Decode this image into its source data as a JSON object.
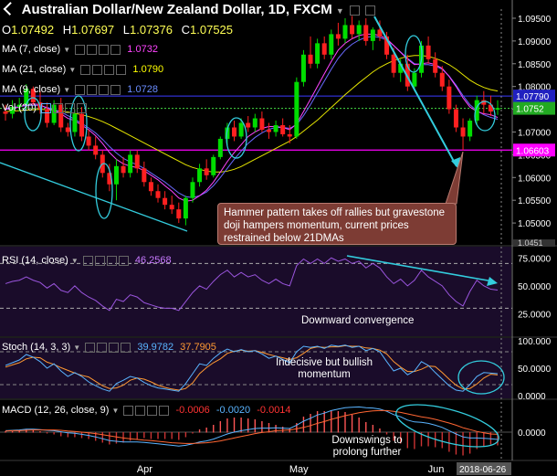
{
  "title": "Australian Dollar/New Zealand Dollar, 1D, FXCM",
  "ohlc": {
    "o_label": "O",
    "o": "1.07492",
    "h_label": "H",
    "h": "1.07697",
    "l_label": "L",
    "l": "1.07376",
    "c_label": "C",
    "c": "1.07525"
  },
  "indicators": [
    {
      "label": "MA (7, close)",
      "value": "1.0732",
      "color": "#ff44ff"
    },
    {
      "label": "MA (21, close)",
      "value": "1.0790",
      "color": "#ffff00"
    },
    {
      "label": "MA (9, close)",
      "value": "1.0728",
      "color": "#5f8cff"
    },
    {
      "label": "Vol (20)",
      "value": "",
      "color": "#ffffff"
    }
  ],
  "price_scale": [
    "1.09500",
    "1.09000",
    "1.08500",
    "1.08000",
    "1.07500",
    "1.07000",
    "1.06500",
    "1.06000",
    "1.05500",
    "1.05000"
  ],
  "price_tags": [
    {
      "value": "1.07790",
      "color": "#2020c0",
      "text": "#ffffff"
    },
    {
      "value": "1.0752",
      "color": "#22aa22",
      "text": "#ffffff"
    },
    {
      "value": "1.06603",
      "color": "#ff00ff",
      "text": "#ffffff"
    }
  ],
  "partial_tag": "1.0451",
  "callout_text": "Hammer pattern takes off rallies but gravestone doji hampers momentum, current prices restrained below 21DMAs",
  "rsi": {
    "label": "RSI (14, close)",
    "value": "46.2568",
    "scale": [
      "75.0000",
      "50.0000",
      "25.0000"
    ],
    "note": "Downward convergence"
  },
  "stoch": {
    "label": "Stoch (14, 3, 3)",
    "k": "39.9782",
    "d": "37.7905",
    "scale": [
      "100.000",
      "50.0000",
      "0.0000"
    ],
    "note": "Indecisive but bullish momentum"
  },
  "macd": {
    "label": "MACD (12, 26, close, 9)",
    "v1": "-0.0006",
    "v2": "-0.0020",
    "v3": "-0.0014",
    "scale": [
      "0.0000"
    ],
    "note": "Downswings to prolong further"
  },
  "x_labels": [
    "Apr",
    "May",
    "Jun"
  ],
  "date_tag": "2018-06-26",
  "colors": {
    "bull": "#00dd00",
    "bear": "#ff2020",
    "ma7": "#ff44ff",
    "ma21": "#e6e600",
    "ma9": "#6a6aff",
    "annot": "#33ccdd"
  },
  "chart_data": {
    "type": "candlestick",
    "title": "Australian Dollar/New Zealand Dollar, 1D, FXCM",
    "ylim": [
      1.045,
      1.097
    ],
    "candles": [
      [
        1.0745,
        1.076,
        1.0725,
        1.074
      ],
      [
        1.074,
        1.077,
        1.073,
        1.0755
      ],
      [
        1.0755,
        1.0775,
        1.0745,
        1.076
      ],
      [
        1.076,
        1.0805,
        1.075,
        1.0795
      ],
      [
        1.0795,
        1.08,
        1.076,
        1.0765
      ],
      [
        1.0765,
        1.079,
        1.074,
        1.075
      ],
      [
        1.075,
        1.0765,
        1.071,
        1.072
      ],
      [
        1.072,
        1.077,
        1.0715,
        1.076
      ],
      [
        1.076,
        1.0775,
        1.07,
        1.071
      ],
      [
        1.071,
        1.072,
        1.069,
        1.07
      ],
      [
        1.07,
        1.075,
        1.069,
        1.074
      ],
      [
        1.074,
        1.0755,
        1.068,
        1.069
      ],
      [
        1.069,
        1.0705,
        1.066,
        1.067
      ],
      [
        1.067,
        1.069,
        1.064,
        1.065
      ],
      [
        1.065,
        1.066,
        1.06,
        1.061
      ],
      [
        1.061,
        1.063,
        1.057,
        1.0585
      ],
      [
        1.0585,
        1.064,
        1.055,
        1.0625
      ],
      [
        1.0625,
        1.0645,
        1.06,
        1.061
      ],
      [
        1.061,
        1.066,
        1.06,
        1.065
      ],
      [
        1.065,
        1.066,
        1.061,
        1.062
      ],
      [
        1.062,
        1.0635,
        1.058,
        1.059
      ],
      [
        1.059,
        1.06,
        1.056,
        1.057
      ],
      [
        1.057,
        1.0585,
        1.0545,
        1.0555
      ],
      [
        1.0555,
        1.057,
        1.053,
        1.054
      ],
      [
        1.054,
        1.056,
        1.052,
        1.053
      ],
      [
        1.053,
        1.0545,
        1.05,
        1.051
      ],
      [
        1.051,
        1.056,
        1.0495,
        1.0555
      ],
      [
        1.0555,
        1.06,
        1.0545,
        1.059
      ],
      [
        1.059,
        1.063,
        1.058,
        1.062
      ],
      [
        1.062,
        1.064,
        1.0595,
        1.0605
      ],
      [
        1.0605,
        1.065,
        1.06,
        1.0645
      ],
      [
        1.0645,
        1.069,
        1.064,
        1.0685
      ],
      [
        1.0685,
        1.072,
        1.067,
        1.071
      ],
      [
        1.071,
        1.0725,
        1.068,
        1.069
      ],
      [
        1.069,
        1.073,
        1.0685,
        1.072
      ],
      [
        1.072,
        1.0735,
        1.07,
        1.071
      ],
      [
        1.071,
        1.074,
        1.07,
        1.073
      ],
      [
        1.073,
        1.0745,
        1.07,
        1.0705
      ],
      [
        1.0705,
        1.072,
        1.0685,
        1.07
      ],
      [
        1.07,
        1.0725,
        1.069,
        1.0715
      ],
      [
        1.0715,
        1.073,
        1.069,
        1.0695
      ],
      [
        1.0695,
        1.0715,
        1.0675,
        1.069
      ],
      [
        1.069,
        1.082,
        1.0685,
        1.081
      ],
      [
        1.081,
        1.088,
        1.08,
        1.087
      ],
      [
        1.087,
        1.091,
        1.084,
        1.085
      ],
      [
        1.085,
        1.0905,
        1.084,
        1.0895
      ],
      [
        1.0895,
        1.091,
        1.086,
        1.087
      ],
      [
        1.087,
        1.0925,
        1.086,
        1.0915
      ],
      [
        1.0915,
        1.094,
        1.089,
        1.0905
      ],
      [
        1.0905,
        1.095,
        1.0895,
        1.0935
      ],
      [
        1.0935,
        1.0955,
        1.0905,
        1.0915
      ],
      [
        1.0915,
        1.0945,
        1.09,
        1.0935
      ],
      [
        1.0935,
        1.095,
        1.089,
        1.09
      ],
      [
        1.09,
        1.093,
        1.088,
        1.0925
      ],
      [
        1.0925,
        1.0945,
        1.09,
        1.091
      ],
      [
        1.091,
        1.092,
        1.086,
        1.087
      ],
      [
        1.087,
        1.0885,
        1.082,
        1.083
      ],
      [
        1.083,
        1.086,
        1.081,
        1.085
      ],
      [
        1.085,
        1.087,
        1.079,
        1.08
      ],
      [
        1.08,
        1.084,
        1.079,
        1.083
      ],
      [
        1.083,
        1.09,
        1.082,
        1.089
      ],
      [
        1.089,
        1.091,
        1.085,
        1.086
      ],
      [
        1.086,
        1.0875,
        1.082,
        1.083
      ],
      [
        1.083,
        1.0845,
        1.079,
        1.08
      ],
      [
        1.08,
        1.0815,
        1.074,
        1.075
      ],
      [
        1.075,
        1.076,
        1.07,
        1.071
      ],
      [
        1.071,
        1.073,
        1.066,
        1.069
      ],
      [
        1.069,
        1.073,
        1.068,
        1.0725
      ],
      [
        1.0725,
        1.078,
        1.0715,
        1.077
      ],
      [
        1.077,
        1.079,
        1.074,
        1.076
      ],
      [
        1.076,
        1.078,
        1.0735,
        1.0745
      ],
      [
        1.07492,
        1.07697,
        1.07376,
        1.07525
      ]
    ],
    "ma7": [
      1.075,
      1.0752,
      1.0755,
      1.076,
      1.0762,
      1.076,
      1.0752,
      1.0748,
      1.074,
      1.073,
      1.0725,
      1.0715,
      1.0705,
      1.0692,
      1.0675,
      1.0655,
      1.064,
      1.063,
      1.0625,
      1.0622,
      1.0615,
      1.0605,
      1.0595,
      1.0582,
      1.057,
      1.0555,
      1.0548,
      1.055,
      1.056,
      1.0572,
      1.059,
      1.0612,
      1.0635,
      1.0655,
      1.0672,
      1.069,
      1.07,
      1.0708,
      1.0712,
      1.0712,
      1.071,
      1.0705,
      1.0718,
      1.0745,
      1.0772,
      1.08,
      1.0828,
      1.0855,
      1.088,
      1.0895,
      1.0905,
      1.0912,
      1.0915,
      1.0915,
      1.0912,
      1.0905,
      1.089,
      1.0875,
      1.086,
      1.0848,
      1.085,
      1.0852,
      1.0848,
      1.084,
      1.0822,
      1.08,
      1.0775,
      1.0755,
      1.0745,
      1.074,
      1.0738,
      1.0732
    ],
    "ma21": [
      1.0745,
      1.0746,
      1.0747,
      1.0748,
      1.0749,
      1.075,
      1.0749,
      1.0748,
      1.0746,
      1.0744,
      1.0741,
      1.0738,
      1.0734,
      1.0729,
      1.0723,
      1.0716,
      1.0708,
      1.07,
      1.0692,
      1.0684,
      1.0676,
      1.0668,
      1.066,
      1.0652,
      1.0644,
      1.0636,
      1.0628,
      1.0622,
      1.0618,
      1.0614,
      1.0612,
      1.0612,
      1.0614,
      1.0618,
      1.0624,
      1.0632,
      1.064,
      1.0648,
      1.0656,
      1.0664,
      1.0672,
      1.068,
      1.069,
      1.0702,
      1.0714,
      1.0726,
      1.074,
      1.0754,
      1.0768,
      1.0782,
      1.0795,
      1.0808,
      1.082,
      1.0832,
      1.0842,
      1.085,
      1.0857,
      1.0862,
      1.0866,
      1.0868,
      1.0868,
      1.0866,
      1.0862,
      1.0856,
      1.0848,
      1.0838,
      1.0826,
      1.0814,
      1.0805,
      1.0798,
      1.0793,
      1.079
    ],
    "ma9": [
      1.0752,
      1.0754,
      1.0756,
      1.0758,
      1.0759,
      1.0758,
      1.0754,
      1.075,
      1.0744,
      1.0736,
      1.0728,
      1.0719,
      1.0709,
      1.0698,
      1.0684,
      1.0668,
      1.0654,
      1.0642,
      1.0634,
      1.0628,
      1.062,
      1.061,
      1.06,
      1.059,
      1.0578,
      1.0566,
      1.0558,
      1.0556,
      1.056,
      1.0568,
      1.0582,
      1.06,
      1.062,
      1.064,
      1.0658,
      1.0675,
      1.0688,
      1.0698,
      1.0706,
      1.071,
      1.071,
      1.0708,
      1.0716,
      1.0736,
      1.076,
      1.0786,
      1.0812,
      1.0838,
      1.0862,
      1.088,
      1.0893,
      1.0902,
      1.0908,
      1.091,
      1.0908,
      1.0902,
      1.089,
      1.0876,
      1.0862,
      1.085,
      1.0848,
      1.0848,
      1.0845,
      1.0838,
      1.0823,
      1.0803,
      1.078,
      1.076,
      1.0747,
      1.0738,
      1.0732,
      1.0728
    ],
    "rsi": [
      52,
      54,
      55,
      58,
      55,
      53,
      48,
      52,
      46,
      44,
      50,
      44,
      40,
      37,
      32,
      28,
      38,
      36,
      42,
      40,
      35,
      33,
      31,
      30,
      30,
      28,
      36,
      44,
      50,
      47,
      54,
      60,
      64,
      58,
      62,
      58,
      60,
      55,
      52,
      56,
      52,
      50,
      68,
      74,
      70,
      74,
      70,
      75,
      72,
      74,
      70,
      72,
      66,
      70,
      66,
      58,
      52,
      56,
      50,
      55,
      64,
      58,
      54,
      50,
      42,
      36,
      32,
      45,
      55,
      50,
      47,
      46.26
    ],
    "stoch_k": [
      55,
      60,
      65,
      75,
      70,
      62,
      50,
      58,
      45,
      35,
      42,
      35,
      25,
      18,
      12,
      8,
      22,
      28,
      35,
      32,
      24,
      18,
      14,
      12,
      10,
      8,
      22,
      40,
      58,
      55,
      68,
      78,
      85,
      80,
      84,
      80,
      82,
      76,
      68,
      72,
      66,
      60,
      80,
      90,
      88,
      90,
      86,
      92,
      90,
      92,
      88,
      90,
      82,
      86,
      80,
      62,
      45,
      50,
      38,
      45,
      62,
      55,
      42,
      30,
      18,
      10,
      8,
      20,
      35,
      42,
      41,
      39.98
    ],
    "stoch_d": [
      52,
      56,
      60,
      67,
      70,
      69,
      61,
      57,
      51,
      46,
      41,
      37,
      34,
      26,
      18,
      13,
      14,
      19,
      28,
      32,
      30,
      25,
      19,
      15,
      12,
      10,
      13,
      23,
      40,
      51,
      60,
      67,
      77,
      81,
      83,
      81,
      82,
      79,
      75,
      72,
      69,
      66,
      69,
      77,
      86,
      89,
      88,
      89,
      89,
      91,
      90,
      90,
      87,
      86,
      83,
      76,
      62,
      52,
      44,
      44,
      48,
      54,
      53,
      42,
      30,
      19,
      12,
      13,
      21,
      32,
      39,
      37.79
    ],
    "macd": [
      0.0004,
      0.0005,
      0.0006,
      0.0008,
      0.0008,
      0.0007,
      0.0005,
      0.0004,
      0.0001,
      -0.0002,
      -0.0003,
      -0.0006,
      -0.0009,
      -0.0013,
      -0.0018,
      -0.0023,
      -0.0025,
      -0.0027,
      -0.0027,
      -0.0027,
      -0.0028,
      -0.003,
      -0.0032,
      -0.0034,
      -0.0036,
      -0.0038,
      -0.0036,
      -0.0032,
      -0.0027,
      -0.0024,
      -0.0019,
      -0.0012,
      -0.0005,
      0.0,
      0.0004,
      0.0007,
      0.001,
      0.0011,
      0.0011,
      0.0012,
      0.0011,
      0.001,
      0.0019,
      0.003,
      0.0038,
      0.0047,
      0.0052,
      0.0059,
      0.0063,
      0.0067,
      0.0068,
      0.0069,
      0.0067,
      0.0066,
      0.0063,
      0.0057,
      0.0048,
      0.0042,
      0.0033,
      0.0028,
      0.0027,
      0.0024,
      0.0019,
      0.0013,
      0.0004,
      -0.0005,
      -0.0013,
      -0.0016,
      -0.0016,
      -0.0017,
      -0.0018,
      -0.002
    ],
    "macd_signal": [
      0.0003,
      0.0004,
      0.0004,
      0.0005,
      0.0006,
      0.0006,
      0.0006,
      0.0006,
      0.0005,
      0.0003,
      0.0002,
      0.0,
      -0.0002,
      -0.0004,
      -0.0007,
      -0.001,
      -0.0013,
      -0.0016,
      -0.0018,
      -0.002,
      -0.0022,
      -0.0023,
      -0.0025,
      -0.0027,
      -0.0029,
      -0.003,
      -0.0031,
      -0.0031,
      -0.003,
      -0.0029,
      -0.0027,
      -0.0024,
      -0.002,
      -0.0016,
      -0.0012,
      -0.0008,
      -0.0004,
      -0.0001,
      0.0001,
      0.0004,
      0.0005,
      0.0006,
      0.0009,
      0.0013,
      0.0018,
      0.0024,
      0.0029,
      0.0035,
      0.004,
      0.0045,
      0.0049,
      0.0053,
      0.0056,
      0.0058,
      0.0059,
      0.0059,
      0.0057,
      0.0054,
      0.005,
      0.0046,
      0.0042,
      0.0039,
      0.0035,
      0.003,
      0.0025,
      0.0019,
      0.0012,
      0.0007,
      0.0002,
      -0.0002,
      -0.0005,
      -0.0006
    ]
  }
}
